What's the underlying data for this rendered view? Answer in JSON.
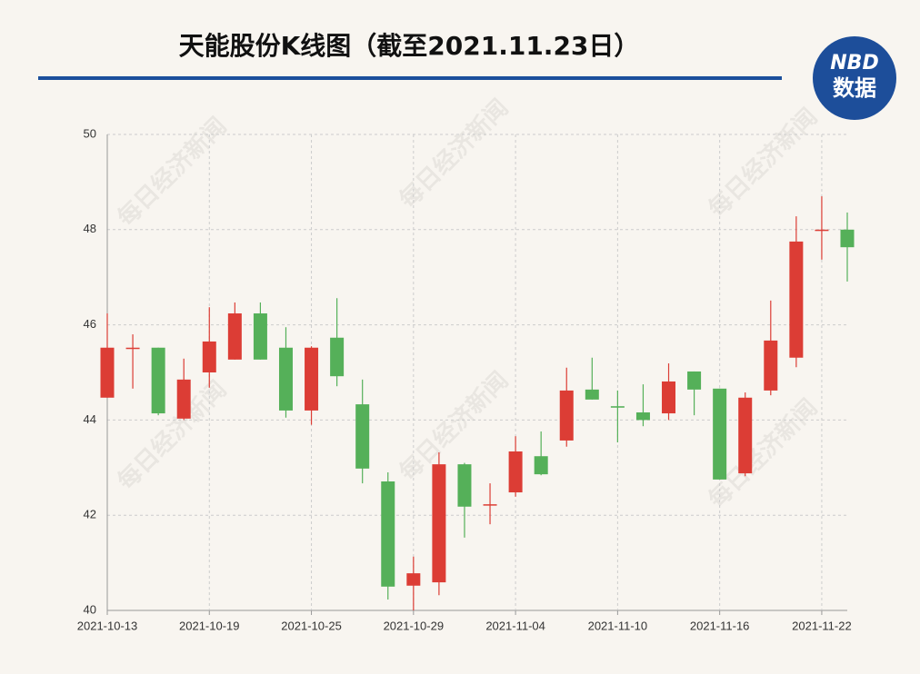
{
  "chart_data": {
    "type": "candlestick",
    "title": "天能股份K线图（截至2021.11.23日）",
    "logo": [
      "NBD",
      "数据"
    ],
    "watermark": "每日经济新闻",
    "categories": [
      "2021-10-13",
      null,
      null,
      null,
      "2021-10-19",
      null,
      null,
      null,
      "2021-10-25",
      null,
      null,
      null,
      "2021-10-29",
      null,
      null,
      null,
      "2021-11-04",
      null,
      null,
      null,
      "2021-11-10",
      null,
      null,
      null,
      "2021-11-16",
      null,
      null,
      null,
      "2021-11-22",
      null
    ],
    "open": [
      44.47,
      45.52,
      45.52,
      44.03,
      45.0,
      45.27,
      46.24,
      45.52,
      44.2,
      45.73,
      44.33,
      42.71,
      40.52,
      40.59,
      43.07,
      42.23,
      42.48,
      43.24,
      43.57,
      44.64,
      44.29,
      44.16,
      44.14,
      45.02,
      44.66,
      42.88,
      44.62,
      45.31,
      48.0,
      48.0
    ],
    "high": [
      46.24,
      45.8,
      45.52,
      45.29,
      46.37,
      46.47,
      46.47,
      45.95,
      45.55,
      46.56,
      44.85,
      42.9,
      41.13,
      43.32,
      43.1,
      42.67,
      43.66,
      43.76,
      45.1,
      45.31,
      44.62,
      44.75,
      45.19,
      45.02,
      44.66,
      44.58,
      46.51,
      48.28,
      48.7,
      48.36
    ],
    "low": [
      44.47,
      44.66,
      44.1,
      44.0,
      44.68,
      45.27,
      45.27,
      44.05,
      43.9,
      44.71,
      42.67,
      40.23,
      40.0,
      40.32,
      41.53,
      41.81,
      42.39,
      42.84,
      43.44,
      44.43,
      43.53,
      43.87,
      44.0,
      44.1,
      42.75,
      42.82,
      44.52,
      45.11,
      47.37,
      46.91
    ],
    "close": [
      45.52,
      45.52,
      44.14,
      44.85,
      45.65,
      46.24,
      45.27,
      44.2,
      45.52,
      44.92,
      42.98,
      40.5,
      40.78,
      43.07,
      42.18,
      42.23,
      43.34,
      42.86,
      44.62,
      44.43,
      44.26,
      44.0,
      44.81,
      44.64,
      42.75,
      44.47,
      45.67,
      47.75,
      48.0,
      47.63
    ],
    "up_color": "#dc3d35",
    "down_color": "#55b059",
    "ylim": [
      40,
      50
    ],
    "yticks": [
      40,
      42,
      44,
      46,
      48,
      50
    ],
    "grid": true
  }
}
